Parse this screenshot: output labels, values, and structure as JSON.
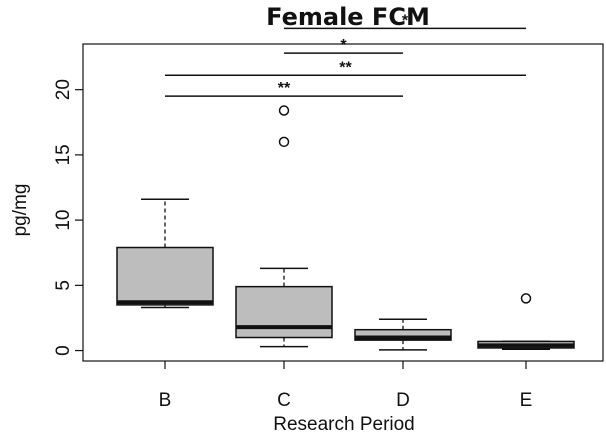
{
  "chart_data": {
    "type": "boxplot",
    "title": "Female FCM",
    "xlabel": "Research Period",
    "ylabel": "pg/mg",
    "categories": [
      "B",
      "C",
      "D",
      "E"
    ],
    "ylim": [
      -0.8,
      23.5
    ],
    "yticks": [
      0,
      5,
      10,
      15,
      20
    ],
    "boxes": [
      {
        "category": "B",
        "whisker_low": 3.3,
        "q1": 3.5,
        "median": 3.7,
        "q3": 7.9,
        "whisker_high": 11.6,
        "outliers": []
      },
      {
        "category": "C",
        "whisker_low": 0.3,
        "q1": 1.0,
        "median": 1.8,
        "q3": 4.9,
        "whisker_high": 6.3,
        "outliers": [
          16.0,
          18.4
        ]
      },
      {
        "category": "D",
        "whisker_low": 0.05,
        "q1": 0.8,
        "median": 1.0,
        "q3": 1.6,
        "whisker_high": 2.4,
        "outliers": []
      },
      {
        "category": "E",
        "whisker_low": 0.1,
        "q1": 0.2,
        "median": 0.4,
        "q3": 0.7,
        "whisker_high": 0.7,
        "outliers": [
          4.0
        ]
      }
    ],
    "significance": [
      {
        "from": "C",
        "to": "E",
        "y": 24.7,
        "label": "*"
      },
      {
        "from": "C",
        "to": "D",
        "y": 22.8,
        "label": "*"
      },
      {
        "from": "B",
        "to": "E",
        "y": 21.1,
        "label": "**"
      },
      {
        "from": "B",
        "to": "D",
        "y": 19.5,
        "label": "**"
      }
    ],
    "colors": {
      "box_fill": "#bdbdbd",
      "stroke": "#111111"
    }
  }
}
